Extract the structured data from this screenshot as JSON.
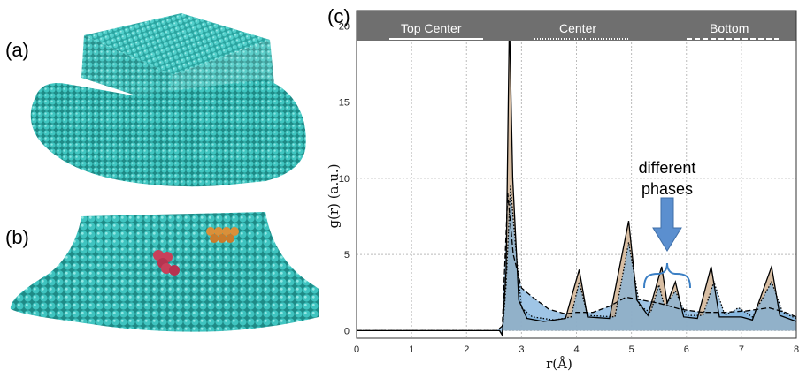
{
  "panels": {
    "a": "(a)",
    "b": "(b)",
    "c": "(c)"
  },
  "colors": {
    "atom": "#3fc4c0",
    "atom_dark": "#1f8f8b",
    "highlight_red": "#c8405a",
    "highlight_orange": "#d9903a",
    "top_center": "#c8a27c",
    "center": "#7fb2dd",
    "bottom": "#d8a4a2",
    "legend_bar": "#6f6f6f",
    "arrow": "#5b8fcf"
  },
  "chart_data": {
    "type": "area",
    "xlabel": "r(Å)",
    "ylabel": "g(r) (a.u.)",
    "xlim": [
      0,
      8
    ],
    "ylim": [
      -0.5,
      21
    ],
    "xticks": [
      "0",
      "1",
      "2",
      "3",
      "4",
      "5",
      "6",
      "7",
      "8"
    ],
    "yticks": [
      "0",
      "5",
      "10",
      "15",
      "20"
    ],
    "grid": true,
    "legend_position": "top",
    "series": [
      {
        "name": "Top Center",
        "line": "solid",
        "color": "#c8a27c",
        "points": [
          [
            0,
            0
          ],
          [
            2.6,
            0
          ],
          [
            2.65,
            -0.3
          ],
          [
            2.72,
            4
          ],
          [
            2.78,
            20.5
          ],
          [
            2.84,
            10
          ],
          [
            2.95,
            2
          ],
          [
            3.1,
            0.8
          ],
          [
            3.4,
            0.6
          ],
          [
            3.8,
            0.8
          ],
          [
            4.05,
            4
          ],
          [
            4.2,
            0.9
          ],
          [
            4.6,
            0.8
          ],
          [
            4.95,
            7.2
          ],
          [
            5.1,
            2
          ],
          [
            5.3,
            1
          ],
          [
            5.55,
            4.2
          ],
          [
            5.65,
            1.8
          ],
          [
            5.8,
            3.2
          ],
          [
            5.95,
            0.9
          ],
          [
            6.2,
            0.8
          ],
          [
            6.45,
            4.2
          ],
          [
            6.6,
            0.9
          ],
          [
            7.0,
            0.9
          ],
          [
            7.2,
            0.7
          ],
          [
            7.55,
            4.2
          ],
          [
            7.7,
            1.0
          ],
          [
            8,
            0.6
          ]
        ]
      },
      {
        "name": "Center",
        "line": "dotted",
        "color": "#c8a27c",
        "points": [
          [
            0,
            0
          ],
          [
            2.6,
            0
          ],
          [
            2.65,
            -0.2
          ],
          [
            2.72,
            3
          ],
          [
            2.8,
            9.5
          ],
          [
            2.88,
            6
          ],
          [
            3.0,
            1.5
          ],
          [
            3.2,
            0.9
          ],
          [
            3.6,
            0.7
          ],
          [
            3.9,
            0.9
          ],
          [
            4.05,
            3.2
          ],
          [
            4.2,
            1.0
          ],
          [
            4.7,
            0.9
          ],
          [
            4.95,
            5.8
          ],
          [
            5.15,
            1.6
          ],
          [
            5.35,
            1.2
          ],
          [
            5.5,
            3.0
          ],
          [
            5.6,
            1.6
          ],
          [
            5.8,
            2.6
          ],
          [
            6.0,
            1.0
          ],
          [
            6.3,
            1.0
          ],
          [
            6.5,
            3.2
          ],
          [
            6.7,
            1.0
          ],
          [
            6.95,
            1.5
          ],
          [
            7.2,
            0.9
          ],
          [
            7.55,
            3.2
          ],
          [
            7.75,
            1.2
          ],
          [
            8,
            0.8
          ]
        ]
      },
      {
        "name": "Bottom",
        "line": "dashed",
        "color": "#7fb2dd",
        "points": [
          [
            0,
            0
          ],
          [
            2.55,
            0
          ],
          [
            2.65,
            0.3
          ],
          [
            2.75,
            9
          ],
          [
            2.85,
            5
          ],
          [
            3.0,
            2.8
          ],
          [
            3.2,
            2.2
          ],
          [
            3.5,
            1.4
          ],
          [
            3.8,
            1.1
          ],
          [
            4.0,
            1.2
          ],
          [
            4.3,
            1.2
          ],
          [
            4.6,
            1.6
          ],
          [
            4.9,
            2.2
          ],
          [
            5.2,
            2.0
          ],
          [
            5.5,
            1.8
          ],
          [
            5.9,
            1.4
          ],
          [
            6.3,
            1.2
          ],
          [
            6.7,
            1.2
          ],
          [
            7.1,
            1.3
          ],
          [
            7.5,
            1.5
          ],
          [
            7.8,
            1.2
          ],
          [
            8,
            0.9
          ]
        ]
      }
    ],
    "annotations": {
      "label_line1": "different",
      "label_line2": "phases"
    }
  }
}
